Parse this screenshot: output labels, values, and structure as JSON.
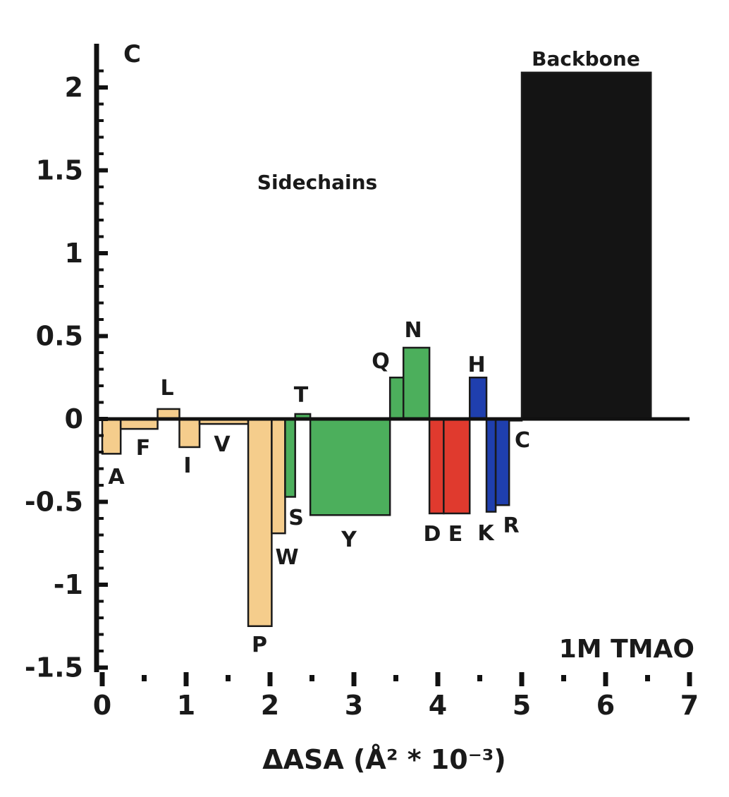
{
  "chart_data": {
    "type": "bar",
    "panel_label": "C",
    "xlabel": "ΔASA (Å² * 10⁻³)",
    "ylabel": "",
    "xlim": [
      0,
      7
    ],
    "ylim": [
      -1.5,
      2.2
    ],
    "x_ticks": [
      "0",
      "1",
      "2",
      "3",
      "4",
      "5",
      "6",
      "7"
    ],
    "y_ticks": [
      "-1.5",
      "-1",
      "-0.5",
      "0",
      "0.5",
      "1",
      "1.5",
      "2"
    ],
    "annotations": {
      "sidechains": "Sidechains",
      "condition": "1M TMAO"
    },
    "colors": {
      "hydrophobic": "#f5cd8c",
      "polar": "#4caf5c",
      "acidic": "#e03a2e",
      "basic": "#1f3fae",
      "backbone": "#141414",
      "axis": "#111111"
    },
    "bars": [
      {
        "label": "A",
        "x0": 0.0,
        "x1": 0.22,
        "value": -0.21,
        "group": "hydrophobic"
      },
      {
        "label": "F",
        "x0": 0.22,
        "x1": 0.66,
        "value": -0.06,
        "group": "hydrophobic"
      },
      {
        "label": "L",
        "x0": 0.66,
        "x1": 0.92,
        "value": 0.06,
        "group": "hydrophobic"
      },
      {
        "label": "I",
        "x0": 0.92,
        "x1": 1.16,
        "value": -0.17,
        "group": "hydrophobic"
      },
      {
        "label": "V",
        "x0": 1.16,
        "x1": 1.74,
        "value": -0.03,
        "group": "hydrophobic"
      },
      {
        "label": "P",
        "x0": 1.74,
        "x1": 2.02,
        "value": -1.25,
        "group": "hydrophobic"
      },
      {
        "label": "W",
        "x0": 2.02,
        "x1": 2.18,
        "value": -0.69,
        "group": "hydrophobic"
      },
      {
        "label": "S",
        "x0": 2.18,
        "x1": 2.3,
        "value": -0.47,
        "group": "polar"
      },
      {
        "label": "T",
        "x0": 2.3,
        "x1": 2.48,
        "value": 0.03,
        "group": "polar"
      },
      {
        "label": "Y",
        "x0": 2.48,
        "x1": 3.43,
        "value": -0.58,
        "group": "polar"
      },
      {
        "label": "Q",
        "x0": 3.43,
        "x1": 3.59,
        "value": 0.25,
        "group": "polar"
      },
      {
        "label": "N",
        "x0": 3.59,
        "x1": 3.9,
        "value": 0.43,
        "group": "polar"
      },
      {
        "label": "D",
        "x0": 3.9,
        "x1": 4.07,
        "value": -0.57,
        "group": "acidic"
      },
      {
        "label": "E",
        "x0": 4.07,
        "x1": 4.38,
        "value": -0.57,
        "group": "acidic"
      },
      {
        "label": "H",
        "x0": 4.38,
        "x1": 4.58,
        "value": 0.25,
        "group": "basic"
      },
      {
        "label": "K",
        "x0": 4.58,
        "x1": 4.69,
        "value": -0.56,
        "group": "basic"
      },
      {
        "label": "R",
        "x0": 4.69,
        "x1": 4.85,
        "value": -0.52,
        "group": "basic"
      },
      {
        "label": "C",
        "x0": 4.85,
        "x1": 5.0,
        "value": -0.01,
        "group": "polar"
      },
      {
        "label": "Backbone",
        "x0": 5.0,
        "x1": 6.54,
        "value": 2.09,
        "group": "backbone"
      }
    ]
  }
}
